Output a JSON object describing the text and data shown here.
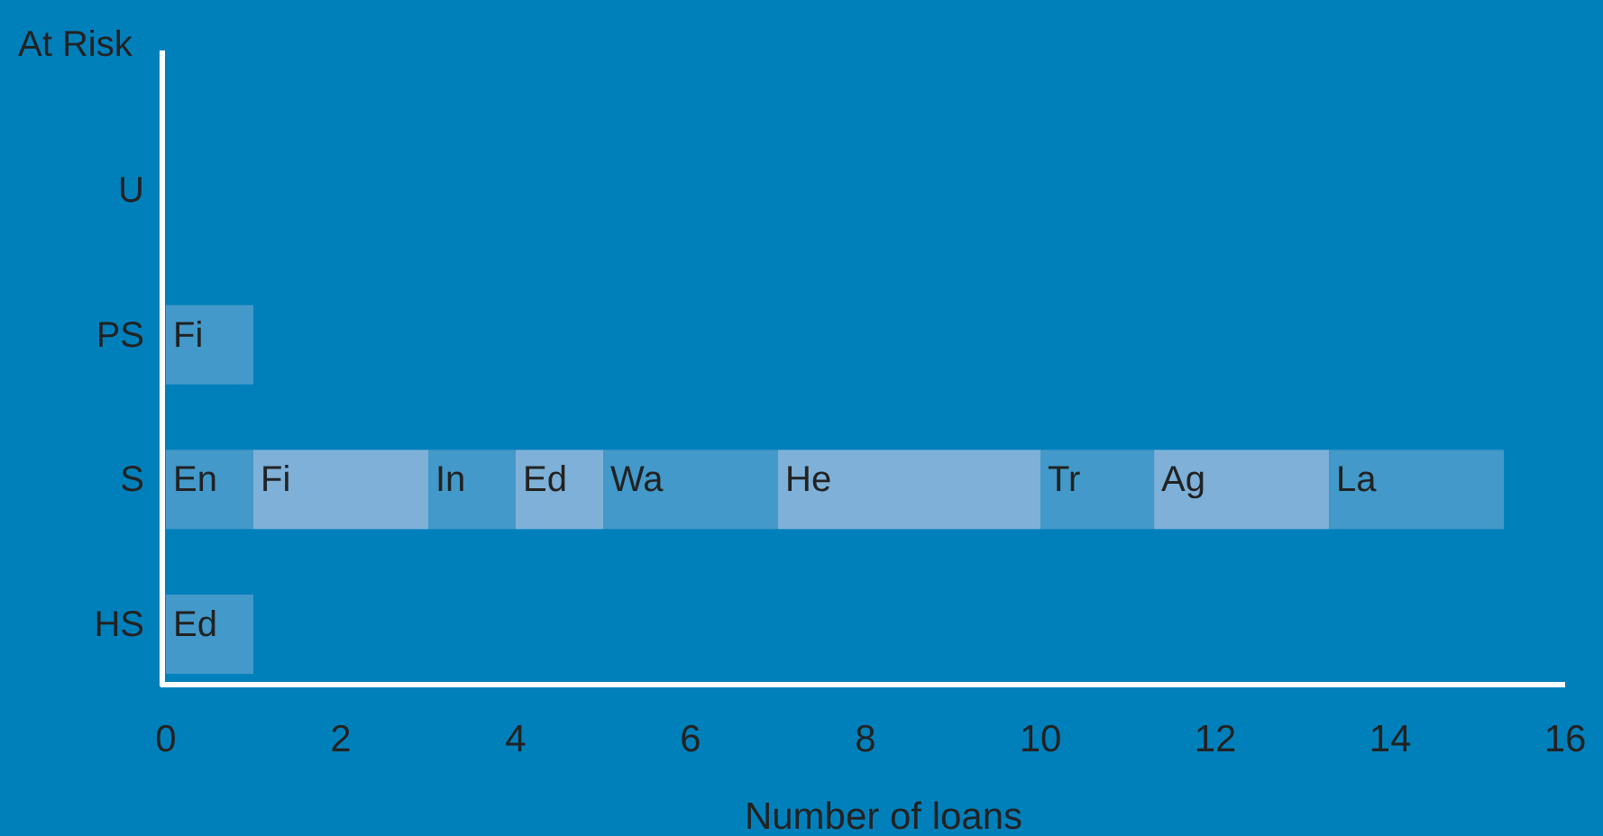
{
  "chart_data": {
    "type": "bar",
    "orientation": "horizontal",
    "stacked": true,
    "ylabel": "At Risk",
    "xlabel": "Number of loans",
    "categories": [
      "U",
      "PS",
      "S",
      "HS"
    ],
    "xlim": [
      0,
      16
    ],
    "xticks": [
      0,
      2,
      4,
      6,
      8,
      10,
      12,
      14,
      16
    ],
    "grid": false,
    "legend": false,
    "series": [
      {
        "name": "En",
        "values": [
          null,
          null,
          1,
          null
        ],
        "colors": [
          null,
          null,
          "#4399c9",
          null
        ]
      },
      {
        "name": "Fi",
        "values": [
          null,
          1,
          2,
          null
        ],
        "colors": [
          null,
          "#4399c9",
          "#7eb0d8",
          null
        ]
      },
      {
        "name": "In",
        "values": [
          null,
          null,
          1,
          null
        ],
        "colors": [
          null,
          null,
          "#4399c9",
          null
        ]
      },
      {
        "name": "Ed",
        "values": [
          null,
          null,
          1,
          1
        ],
        "colors": [
          null,
          null,
          "#7eb0d8",
          "#4399c9"
        ]
      },
      {
        "name": "Wa",
        "values": [
          null,
          null,
          2,
          null
        ],
        "colors": [
          null,
          null,
          "#4399c9",
          null
        ]
      },
      {
        "name": "He",
        "values": [
          null,
          null,
          3,
          null
        ],
        "colors": [
          null,
          null,
          "#7eb0d8",
          null
        ]
      },
      {
        "name": "Tr",
        "values": [
          null,
          null,
          1.3,
          null
        ],
        "colors": [
          null,
          null,
          "#4399c9",
          null
        ]
      },
      {
        "name": "Ag",
        "values": [
          null,
          null,
          2,
          null
        ],
        "colors": [
          null,
          null,
          "#7eb0d8",
          null
        ]
      },
      {
        "name": "La",
        "values": [
          null,
          null,
          2,
          null
        ],
        "colors": [
          null,
          null,
          "#4399c9",
          null
        ]
      }
    ]
  }
}
